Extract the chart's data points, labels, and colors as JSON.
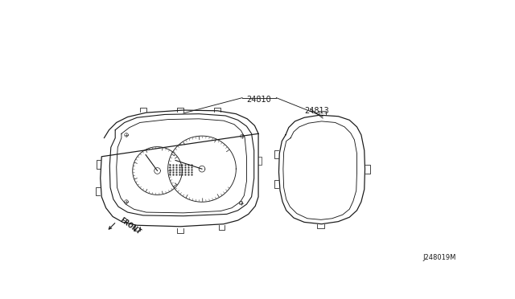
{
  "bg_color": "#ffffff",
  "line_color": "#1a1a1a",
  "label_24810": "24810",
  "label_24813": "24813",
  "label_front": "FRONT",
  "label_diagram_id": "J248019M"
}
